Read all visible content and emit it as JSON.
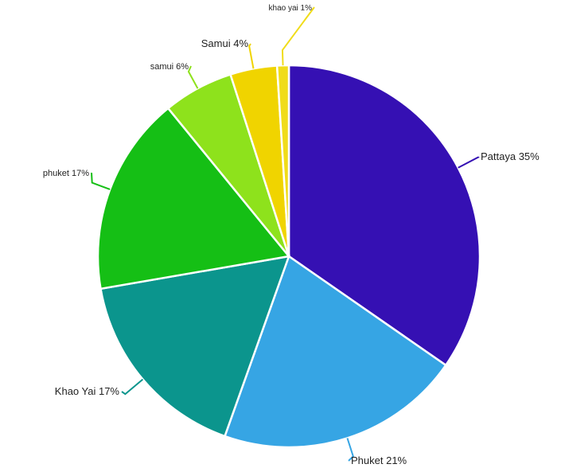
{
  "chart_data": {
    "type": "pie",
    "start": "12 o'clock",
    "direction": "clockwise",
    "slices": [
      {
        "name": "Pattaya",
        "value": 35,
        "color": "#3510b3"
      },
      {
        "name": "Phuket",
        "value": 21,
        "color": "#36a5e4"
      },
      {
        "name": "Khao Yai",
        "value": 17,
        "color": "#0b958d"
      },
      {
        "name": "phuket",
        "value": 17,
        "color": "#15bf15"
      },
      {
        "name": "samui",
        "value": 6,
        "color": "#8ee21c"
      },
      {
        "name": "Samui",
        "value": 4,
        "color": "#f0d400"
      },
      {
        "name": "khao yai",
        "value": 1,
        "color": "#f0dc1a"
      }
    ],
    "labels": [
      {
        "slice": 0,
        "text": "Pattaya 35%"
      },
      {
        "slice": 1,
        "text": "Phuket 21%"
      },
      {
        "slice": 2,
        "text": "Khao Yai 17%"
      },
      {
        "slice": 3,
        "text": "phuket 17%"
      },
      {
        "slice": 4,
        "text": "samui 6%"
      },
      {
        "slice": 5,
        "text": "Samui 4%"
      },
      {
        "slice": 6,
        "text": "khao yai 1%"
      }
    ]
  }
}
